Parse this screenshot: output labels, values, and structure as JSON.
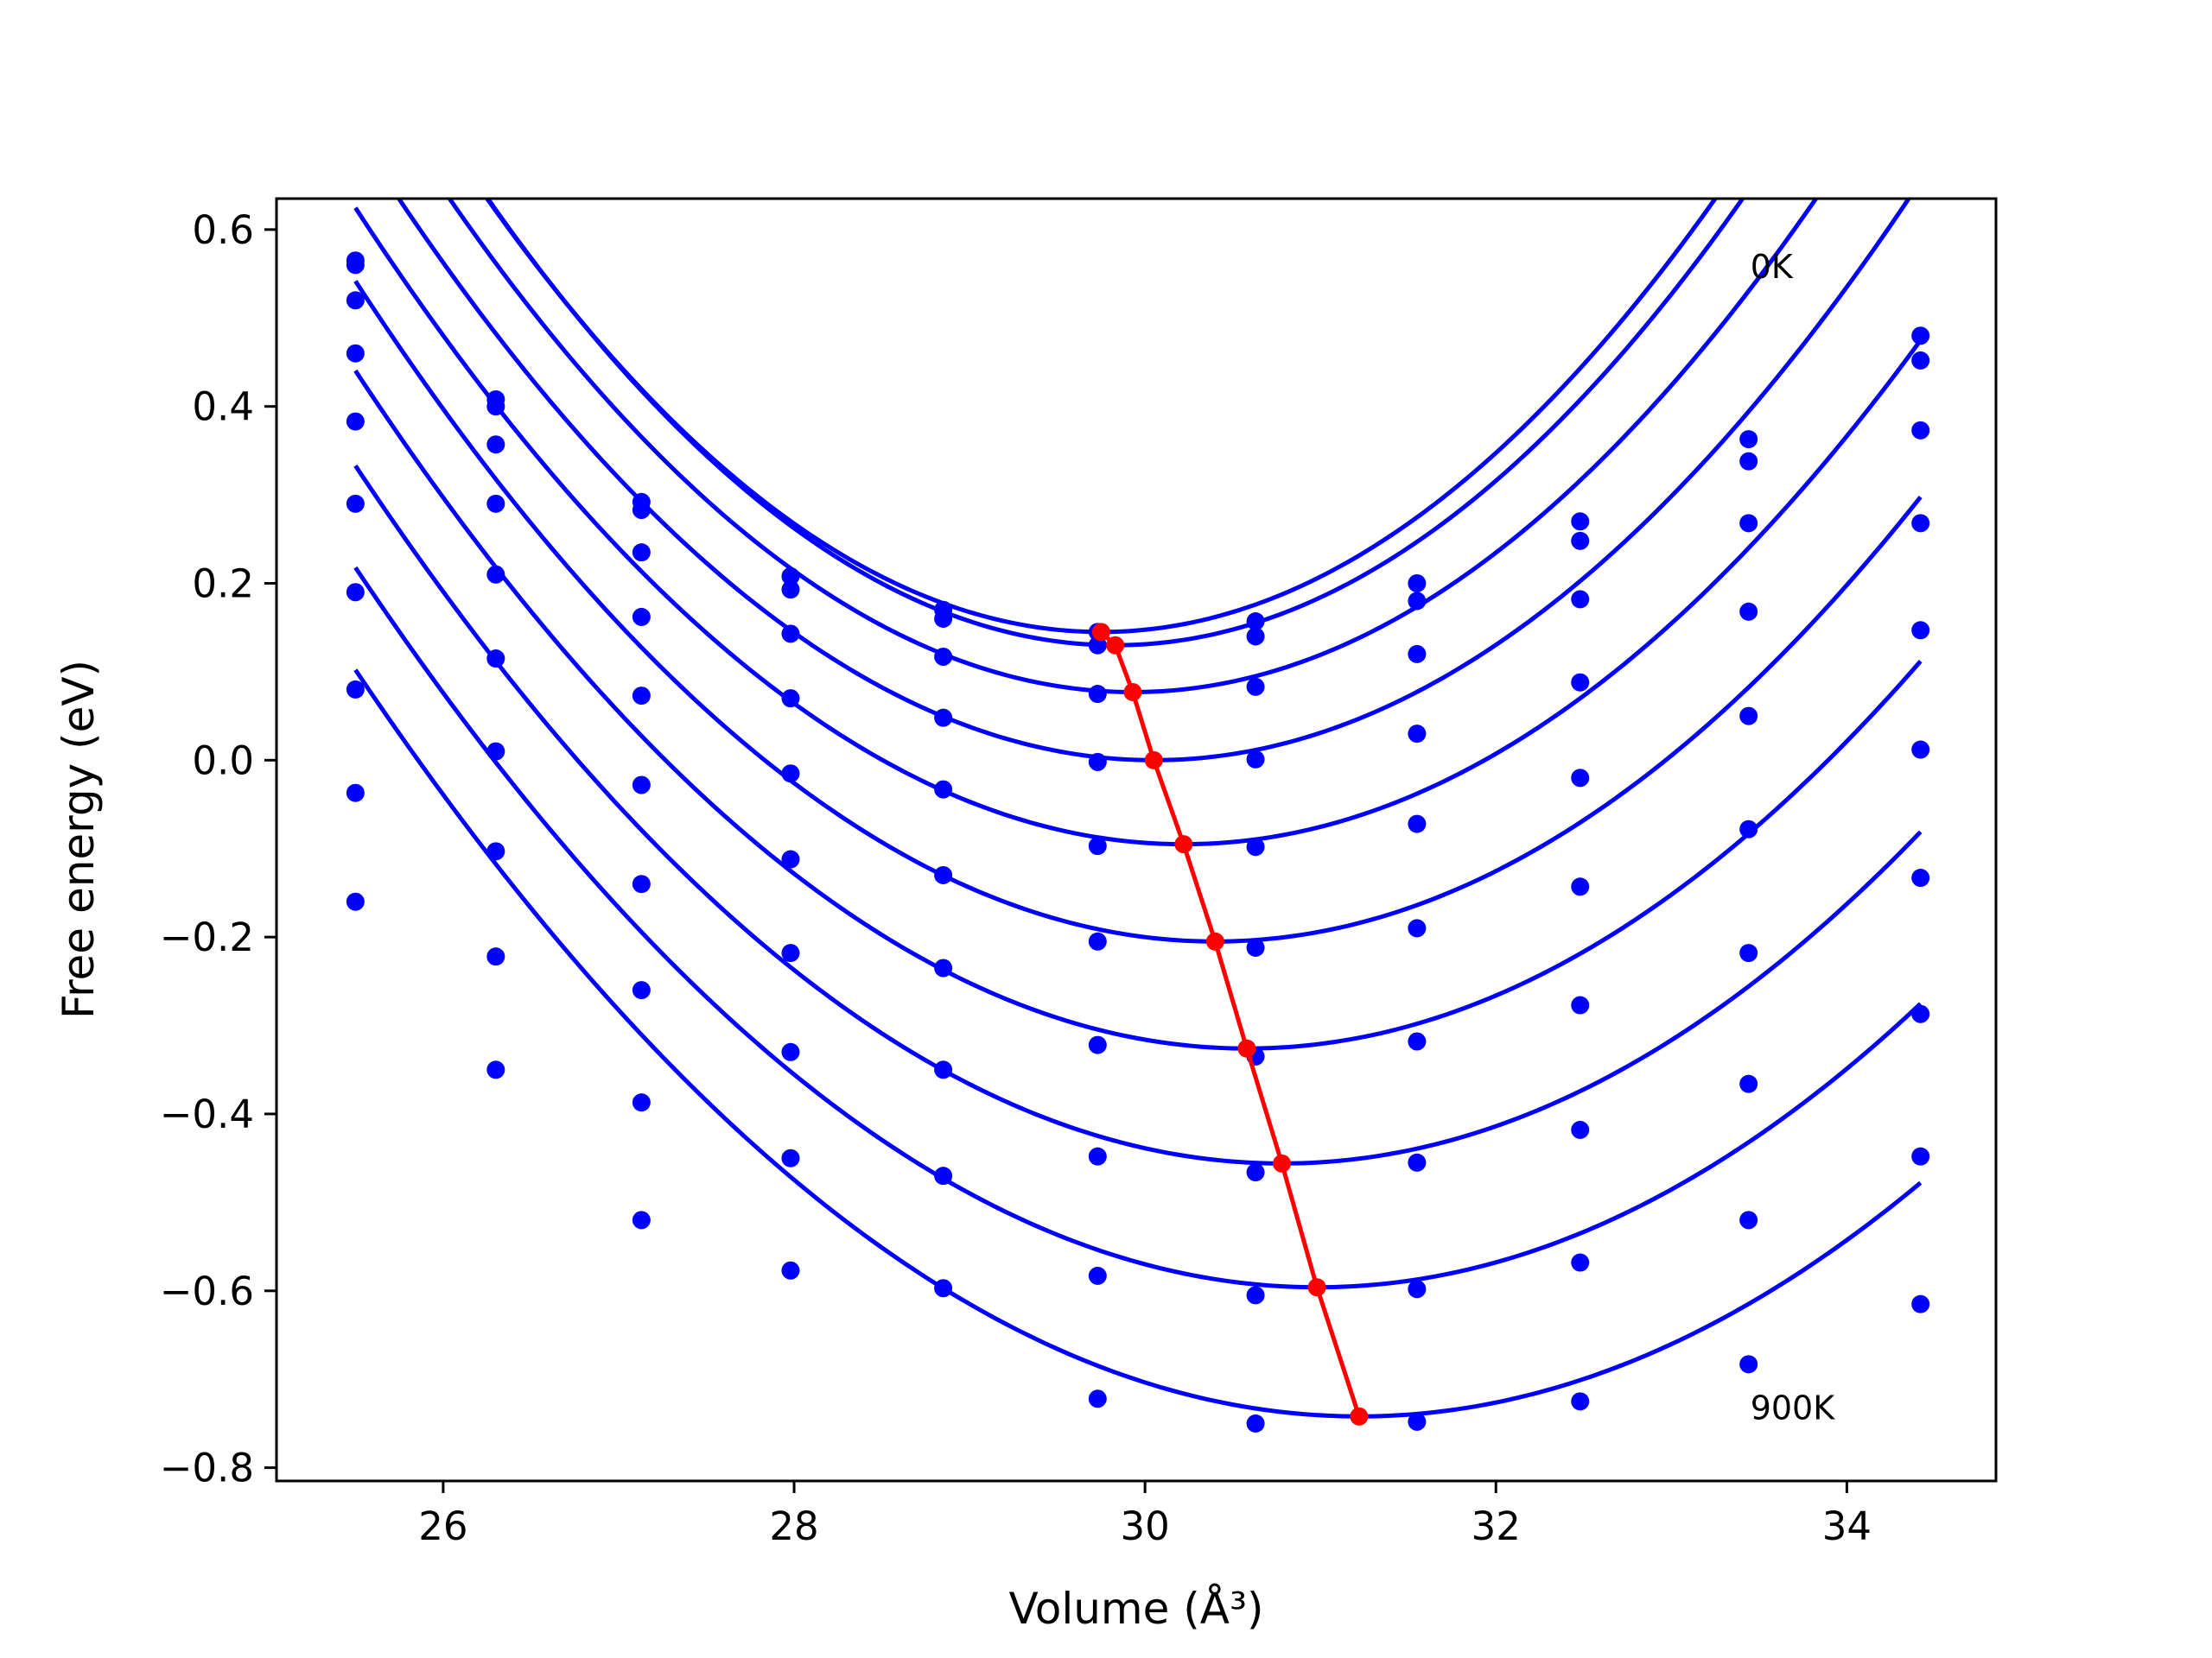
{
  "chart_data": {
    "type": "line",
    "xlabel": "Volume (Å³)",
    "ylabel": "Free energy (eV)",
    "xlim": [
      25.05,
      34.85
    ],
    "ylim": [
      -0.815,
      0.635
    ],
    "xticks": [
      26,
      28,
      30,
      32,
      34
    ],
    "yticks": [
      0.6,
      0.4,
      0.2,
      0.0,
      -0.2,
      -0.4,
      -0.6,
      -0.8
    ],
    "xtick_labels": [
      "26",
      "28",
      "30",
      "32",
      "34"
    ],
    "ytick_labels": [
      "0.6",
      "0.4",
      "0.2",
      "0.0",
      "−0.2",
      "−0.4",
      "−0.6",
      "−0.8"
    ],
    "grid": false,
    "colors": {
      "series": "#0000ff",
      "minimum": "#ff0000"
    },
    "annotations": [
      {
        "text": "0K",
        "x": 33.45,
        "y": 0.545
      },
      {
        "text": "900K",
        "x": 33.45,
        "y": -0.745
      }
    ],
    "x": [
      25.5,
      26.3,
      27.13,
      27.98,
      28.85,
      29.73,
      30.63,
      31.55,
      32.48,
      33.44,
      34.42
    ],
    "series": [
      {
        "points_y": [
          0.565,
          0.408,
          0.292,
          0.208,
          0.17,
          0.145,
          0.157,
          0.2,
          0.27,
          0.363,
          0.48
        ],
        "fit": {
          "a": 0.04,
          "v0": 29.75,
          "e0": 0.145
        }
      },
      {
        "points_y": [
          0.56,
          0.4,
          0.283,
          0.193,
          0.16,
          0.13,
          0.14,
          0.18,
          0.248,
          0.338,
          0.452
        ],
        "fit": {
          "a": 0.0395,
          "v0": 29.83,
          "e0": 0.13
        }
      },
      {
        "points_y": [
          0.52,
          0.357,
          0.235,
          0.143,
          0.117,
          0.075,
          0.083,
          0.12,
          0.182,
          0.268,
          0.373
        ],
        "fit": {
          "a": 0.0368,
          "v0": 29.93,
          "e0": 0.077
        }
      },
      {
        "points_y": [
          0.46,
          0.29,
          0.162,
          0.07,
          0.048,
          -0.002,
          0.001,
          0.03,
          0.088,
          0.168,
          0.268
        ],
        "fit": {
          "a": 0.0343,
          "v0": 30.05,
          "e0": 0.0
        }
      },
      {
        "points_y": [
          0.383,
          0.21,
          0.073,
          -0.015,
          -0.033,
          -0.097,
          -0.098,
          -0.072,
          -0.02,
          0.05,
          0.147
        ],
        "fit": {
          "a": 0.0323,
          "v0": 30.22,
          "e0": -0.095
        }
      },
      {
        "points_y": [
          0.29,
          0.115,
          -0.028,
          -0.112,
          -0.13,
          -0.205,
          -0.212,
          -0.19,
          -0.143,
          -0.078,
          0.012
        ],
        "fit": {
          "a": 0.0311,
          "v0": 30.4,
          "e0": -0.205
        }
      },
      {
        "points_y": [
          0.19,
          0.01,
          -0.14,
          -0.218,
          -0.235,
          -0.322,
          -0.335,
          -0.318,
          -0.277,
          -0.218,
          -0.133
        ],
        "fit": {
          "a": 0.0297,
          "v0": 30.58,
          "e0": -0.326
        }
      },
      {
        "points_y": [
          0.08,
          -0.103,
          -0.26,
          -0.33,
          -0.35,
          -0.448,
          -0.466,
          -0.455,
          -0.418,
          -0.366,
          -0.287
        ],
        "fit": {
          "a": 0.0283,
          "v0": 30.78,
          "e0": -0.456
        }
      },
      {
        "points_y": [
          -0.037,
          -0.222,
          -0.387,
          -0.45,
          -0.47,
          -0.583,
          -0.605,
          -0.598,
          -0.568,
          -0.52,
          -0.448
        ],
        "fit": {
          "a": 0.0271,
          "v0": 30.98,
          "e0": -0.596
        }
      },
      {
        "points_y": [
          -0.16,
          -0.35,
          -0.52,
          -0.577,
          -0.597,
          -0.722,
          -0.75,
          -0.748,
          -0.725,
          -0.683,
          -0.615
        ],
        "fit": {
          "a": 0.0258,
          "v0": 31.22,
          "e0": -0.742
        }
      }
    ],
    "minimum_line": {
      "x": [
        29.75,
        29.83,
        29.93,
        30.05,
        30.22,
        30.4,
        30.58,
        30.78,
        30.98,
        31.22
      ],
      "y": [
        0.145,
        0.13,
        0.077,
        0.0,
        -0.095,
        -0.205,
        -0.326,
        -0.456,
        -0.596,
        -0.742
      ]
    }
  }
}
